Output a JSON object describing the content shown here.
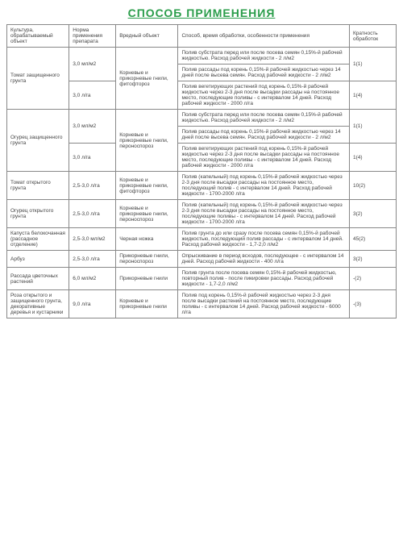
{
  "title": "СПОСОБ ПРИМЕНЕНИЯ",
  "headers": {
    "col1": "Культура, обрабатываемый объект",
    "col2": "Норма применения препарата",
    "col3": "Вредный объект",
    "col4": "Способ, время обработки, особенности применения",
    "col5": "Кратность обработок"
  },
  "r1": {
    "culture": "Томат защищенного грунта",
    "norm": "3,0 мл/м2",
    "obj": "Корневые и прикорневые гнили, фитофтороз",
    "method": "Полив субстрата перед или после посева семян 0,15%-й рабочей жидкостью. Расход рабочей жидкости - 2 л/м2",
    "mult": "1(1)"
  },
  "r2": {
    "method": "Полив рассады под корень 0,15%-й рабочей жидкостью через 14 дней после высева семян. Расход рабочей жидкости - 2 л/м2"
  },
  "r3": {
    "norm": "3,0 л/га",
    "method": "Полив вегетирующих растений под корень 0,15%-й рабочей жидкостью через 2-3 дня после высадки рассады на постоянное место, последующие поливы - с интервалом 14 дней. Расход рабочей жидкости - 2000 л/га",
    "mult": "1(4)"
  },
  "r4": {
    "culture": "Огурец защищенного грунта",
    "norm": "3,0 мл/м2",
    "obj": "Корневые и прикорневые гнили, пероноспороз",
    "method": "Полив субстрата перед или после посева семян 0,15%-й рабочей жидкостью. Расход рабочей жидкости - 2 л/м2",
    "mult": "1(1)"
  },
  "r5": {
    "method": "Полив рассады под корень 0,15%-й рабочей жидкостью через 14 дней после высева семян. Расход рабочей жидкости - 2 л/м2"
  },
  "r6": {
    "norm": "3,0 л/га",
    "method": "Полив вегетирующих растений под корень 0,15%-й рабочей жидкостью через 2-3 дня после высадки рассады на постоянное место, последующие поливы - с интервалом 14 дней. Расход рабочей жидкости - 2000 л/га",
    "mult": "1(4)"
  },
  "r7": {
    "culture": "Томат открытого грунта",
    "norm": "2,5-3,0 л/га",
    "obj": "Корневые и прикорневые гнили, фитофтороз",
    "method": "Полив (капельный) под корень 0,15%-й рабочей жидкостью через 2-3 дня после высадки рассады на постоянное место, последующий полив - с интервалом 14 дней. Расход рабочей жидкости - 1700-2000 л/га",
    "mult": "10(2)"
  },
  "r8": {
    "culture": "Огурец открытого грунта",
    "norm": "2,5-3,0 л/га",
    "obj": "Корневые и прикорневые гнили, пероноспороз",
    "method": "Полив (капельный) под корень 0,15%-й рабочей жидкостью через 2-3 дня после высадки рассады на постоянное место, последующие поливы - с интервалом 14 дней. Расход рабочей жидкости - 1700-2000 л/га",
    "mult": "3(2)"
  },
  "r9": {
    "culture": "Капуста белокочанная (рассадное отделение)",
    "norm": "2,5-3,0 мл/м2",
    "obj": "Черная ножка",
    "method": "Полив грунта до или сразу после посева семян 0,15%-й рабочей жидкостью, последующий полив рассады - с интервалом 14 дней. Расход рабочей жидкости - 1,7-2,0 л/м2",
    "mult": "45(2)"
  },
  "r10": {
    "culture": "Арбуз",
    "norm": "2,5-3,0 л/га",
    "obj": "Прикорневые гнили, пероноспороз",
    "method": "Опрыскивание в период всходов, последующее - с интервалом 14 дней. Расход рабочей жидкости - 400 л/га",
    "mult": "3(2)"
  },
  "r11": {
    "culture": "Рассада цветочных растений",
    "norm": "6,0 мл/м2",
    "obj": "Прикорневые гнили",
    "method": "Полив грунта после посева семян 0,15%-й рабочей жидкостью, повторный полив - после пикировки рассады. Расход рабочей жидкости - 1,7-2,0 л/м2",
    "mult": "-(2)"
  },
  "r12": {
    "culture": "Роза открытого и защищенного грунта, декоративные деревья и кустарники",
    "norm": "9,0 л/га",
    "obj": "Корневые и прикорневые гнили",
    "method": "Полив под корень 0,15%-й рабочей жидкостью через 2-3 дня после высадки растений на постоянное место, последующие поливы - с интервалом 14 дней. Расход рабочей жидкости - 6000 л/га",
    "mult": "-(3)"
  }
}
